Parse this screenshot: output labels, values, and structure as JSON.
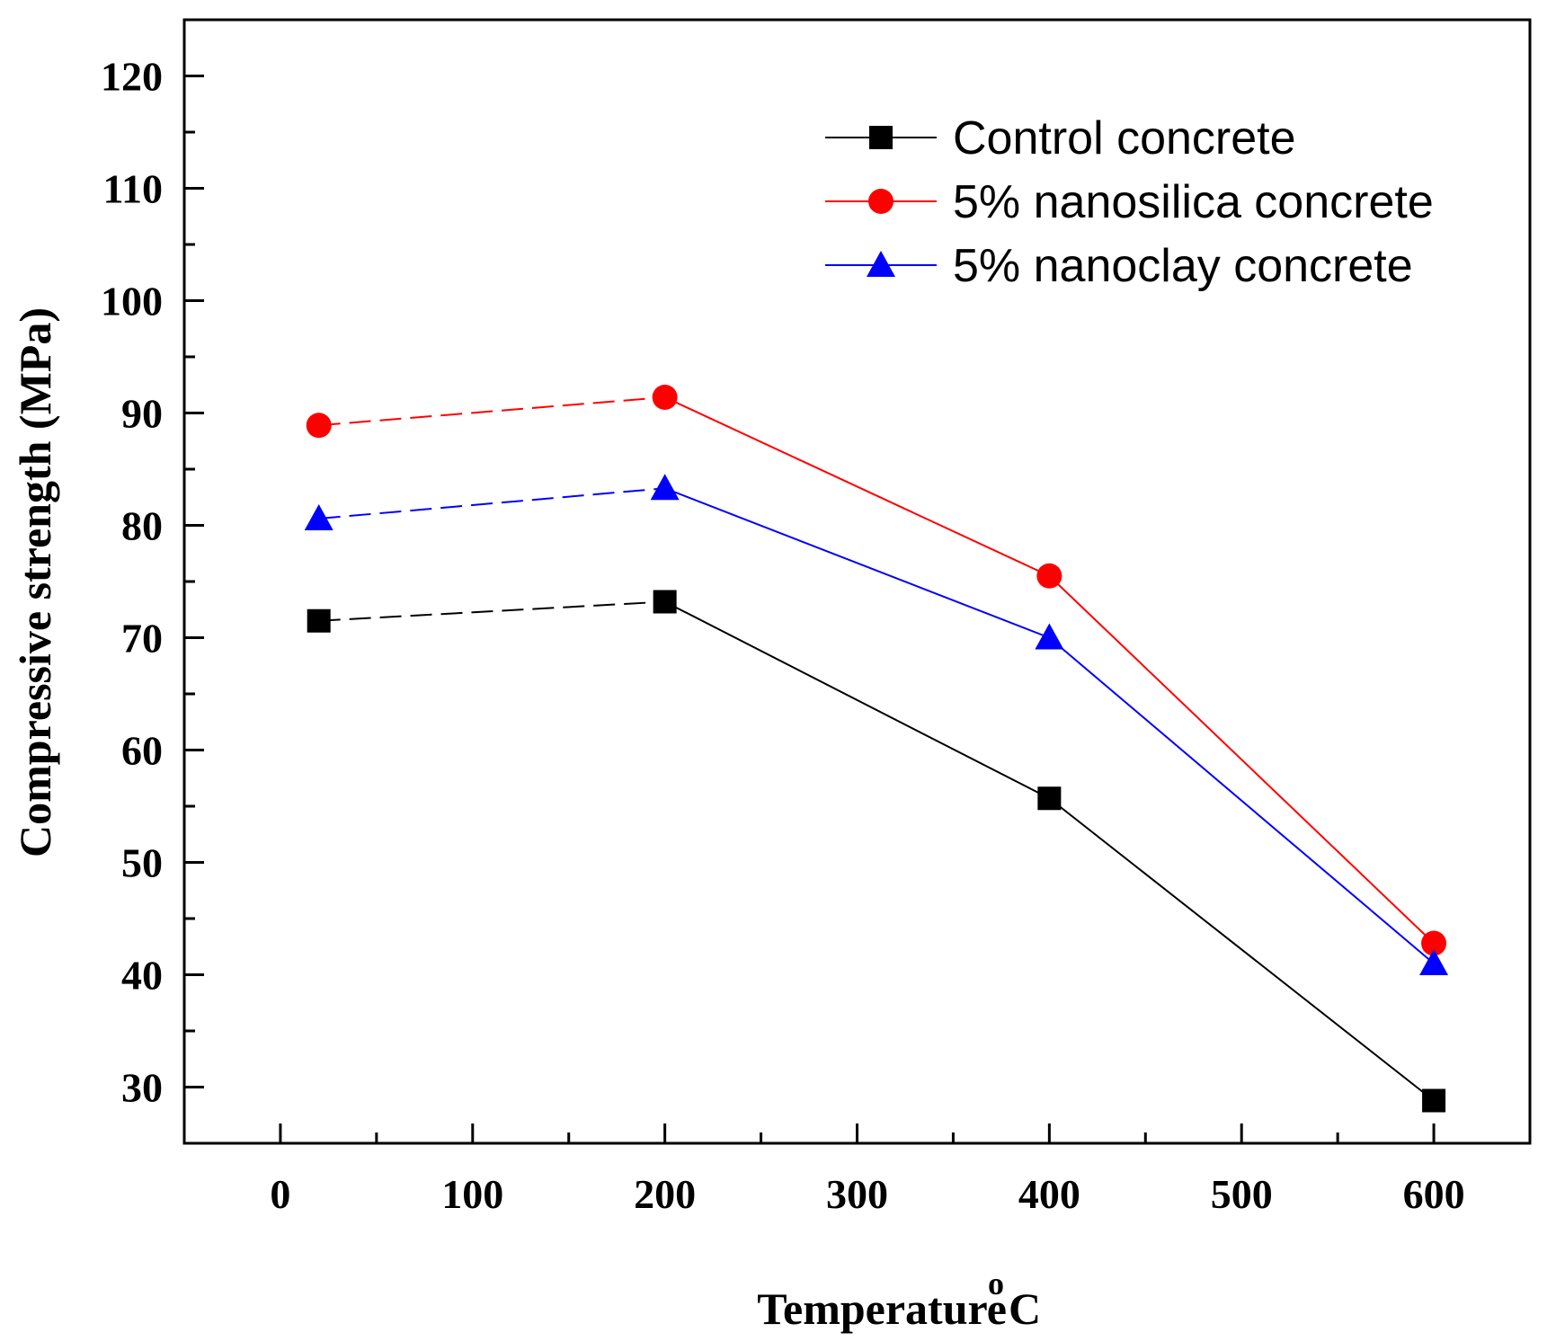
{
  "chart_data": {
    "type": "line",
    "title": "",
    "xlabel": "Temperature",
    "xlabel_sup": "o",
    "xlabel_unit": "C",
    "ylabel": "Compressive strength (MPa)",
    "xlim": [
      -50,
      650
    ],
    "ylim": [
      25,
      125
    ],
    "xticks": [
      0,
      100,
      200,
      300,
      400,
      500,
      600
    ],
    "yticks": [
      30,
      40,
      50,
      60,
      70,
      80,
      90,
      100,
      110,
      120
    ],
    "grid": false,
    "legend_position": "top-right",
    "series": [
      {
        "name": "Control concrete",
        "color": "#000000",
        "marker": "square",
        "x": [
          20,
          200,
          400,
          600
        ],
        "values": [
          71.5,
          73.2,
          55.7,
          28.8
        ]
      },
      {
        "name": "5% nanosilica concrete",
        "color": "#ff0000",
        "marker": "circle",
        "x": [
          20,
          200,
          400,
          600
        ],
        "values": [
          88.9,
          91.4,
          75.5,
          42.8
        ]
      },
      {
        "name": "5% nanoclay concrete",
        "color": "#0000ff",
        "marker": "triangle",
        "x": [
          20,
          200,
          400,
          600
        ],
        "values": [
          80.6,
          83.3,
          70.0,
          41.0
        ]
      }
    ]
  }
}
